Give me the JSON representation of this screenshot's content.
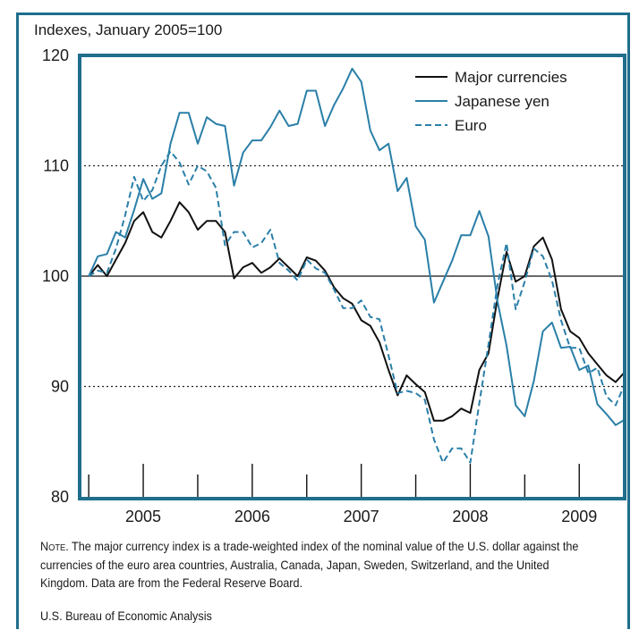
{
  "chart_data": {
    "type": "line",
    "subtitle": "Indexes, January 2005=100",
    "ylim": [
      80,
      120
    ],
    "yticks": [
      80,
      90,
      100,
      110,
      120
    ],
    "xlim": [
      "2004-12",
      "2009-12"
    ],
    "x_labels": [
      "2005",
      "2006",
      "2007",
      "2008",
      "2009"
    ],
    "gridlines": [
      90,
      110
    ],
    "reference_line": 100,
    "legend_position": "top-right",
    "series": [
      {
        "name": "Major currencies",
        "color": "#111111",
        "style": "solid",
        "x": [
          "2005-01",
          "2005-02",
          "2005-03",
          "2005-04",
          "2005-05",
          "2005-06",
          "2005-07",
          "2005-08",
          "2005-09",
          "2005-10",
          "2005-11",
          "2005-12",
          "2006-01",
          "2006-02",
          "2006-03",
          "2006-04",
          "2006-05",
          "2006-06",
          "2006-07",
          "2006-08",
          "2006-09",
          "2006-10",
          "2006-11",
          "2006-12",
          "2007-01",
          "2007-02",
          "2007-03",
          "2007-04",
          "2007-05",
          "2007-06",
          "2007-07",
          "2007-08",
          "2007-09",
          "2007-10",
          "2007-11",
          "2007-12",
          "2008-01",
          "2008-02",
          "2008-03",
          "2008-04",
          "2008-05",
          "2008-06",
          "2008-07",
          "2008-08",
          "2008-09",
          "2008-10",
          "2008-11",
          "2008-12",
          "2009-01",
          "2009-02",
          "2009-03",
          "2009-04",
          "2009-05",
          "2009-06",
          "2009-07",
          "2009-08",
          "2009-09",
          "2009-10",
          "2009-11",
          "2009-12"
        ],
        "values": [
          100,
          101,
          100,
          101.5,
          103,
          105,
          105.8,
          104,
          103.5,
          105,
          106.7,
          105.8,
          104.2,
          105,
          105,
          104,
          99.8,
          100.8,
          101.2,
          100.3,
          100.8,
          101.6,
          100.8,
          100,
          101.7,
          101.4,
          100.5,
          99,
          98,
          97.5,
          96,
          95.5,
          94,
          91.5,
          89.2,
          91,
          90.2,
          89.5,
          86.9,
          86.9,
          87.3,
          88,
          87.6,
          91.5,
          93,
          98,
          102.2,
          99.5,
          100,
          102.7,
          103.5,
          101.5,
          97,
          95,
          94.4,
          93,
          92,
          91,
          90.4,
          91.3
        ]
      },
      {
        "name": "Japanese yen",
        "color": "#2a7fa8",
        "style": "solid",
        "x": [
          "2005-01",
          "2005-02",
          "2005-03",
          "2005-04",
          "2005-05",
          "2005-06",
          "2005-07",
          "2005-08",
          "2005-09",
          "2005-10",
          "2005-11",
          "2005-12",
          "2006-01",
          "2006-02",
          "2006-03",
          "2006-04",
          "2006-05",
          "2006-06",
          "2006-07",
          "2006-08",
          "2006-09",
          "2006-10",
          "2006-11",
          "2006-12",
          "2007-01",
          "2007-02",
          "2007-03",
          "2007-04",
          "2007-05",
          "2007-06",
          "2007-07",
          "2007-08",
          "2007-09",
          "2007-10",
          "2007-11",
          "2007-12",
          "2008-01",
          "2008-02",
          "2008-03",
          "2008-04",
          "2008-05",
          "2008-06",
          "2008-07",
          "2008-08",
          "2008-09",
          "2008-10",
          "2008-11",
          "2008-12",
          "2009-01",
          "2009-02",
          "2009-03",
          "2009-04",
          "2009-05",
          "2009-06",
          "2009-07",
          "2009-08",
          "2009-09",
          "2009-10",
          "2009-11",
          "2009-12"
        ],
        "values": [
          100,
          101.8,
          102,
          104,
          103.5,
          106,
          108.8,
          107,
          107.5,
          112,
          114.8,
          114.8,
          112,
          114.4,
          113.8,
          113.6,
          108.2,
          111.2,
          112.3,
          112.3,
          113.5,
          115,
          113.6,
          113.8,
          116.8,
          116.8,
          113.6,
          115.5,
          117,
          118.8,
          117.6,
          113.2,
          111.4,
          112,
          107.7,
          108.9,
          104.5,
          103.3,
          97.6,
          99.5,
          101.4,
          103.7,
          103.7,
          105.9,
          103.6,
          97.7,
          93.7,
          88.3,
          87.3,
          90.5,
          95,
          95.8,
          93.5,
          93.6,
          91.5,
          91.9,
          88.4,
          87.5,
          86.5,
          87
        ]
      },
      {
        "name": "Euro",
        "color": "#2a7fa8",
        "style": "dashed",
        "x": [
          "2005-01",
          "2005-02",
          "2005-03",
          "2005-04",
          "2005-05",
          "2005-06",
          "2005-07",
          "2005-08",
          "2005-09",
          "2005-10",
          "2005-11",
          "2005-12",
          "2006-01",
          "2006-02",
          "2006-03",
          "2006-04",
          "2006-05",
          "2006-06",
          "2006-07",
          "2006-08",
          "2006-09",
          "2006-10",
          "2006-11",
          "2006-12",
          "2007-01",
          "2007-02",
          "2007-03",
          "2007-04",
          "2007-05",
          "2007-06",
          "2007-07",
          "2007-08",
          "2007-09",
          "2007-10",
          "2007-11",
          "2007-12",
          "2008-01",
          "2008-02",
          "2008-03",
          "2008-04",
          "2008-05",
          "2008-06",
          "2008-07",
          "2008-08",
          "2008-09",
          "2008-10",
          "2008-11",
          "2008-12",
          "2009-01",
          "2009-02",
          "2009-03",
          "2009-04",
          "2009-05",
          "2009-06",
          "2009-07",
          "2009-08",
          "2009-09",
          "2009-10",
          "2009-11",
          "2009-12"
        ],
        "values": [
          100,
          100.5,
          100.3,
          102.5,
          105.5,
          109,
          106.8,
          107.8,
          110,
          111.3,
          110.3,
          108.3,
          110,
          109.5,
          108,
          102.8,
          104,
          104,
          102.6,
          103,
          104.2,
          101.2,
          100.5,
          99.6,
          101.5,
          100.7,
          100.3,
          98.8,
          97.1,
          97.1,
          97.8,
          96.3,
          96.1,
          92.8,
          89.4,
          89.6,
          89.4,
          88.8,
          85.2,
          83.1,
          84.4,
          84.4,
          83.1,
          88.5,
          93.8,
          99.2,
          103,
          97,
          99.5,
          102.5,
          101.8,
          99.6,
          96,
          93.5,
          93.5,
          91.2,
          91.7,
          89.1,
          88.3,
          90.2
        ]
      }
    ]
  },
  "note": {
    "lead": "Note.",
    "text": " The major currency index is a trade-weighted index of the nominal value of the U.S. dollar against the currencies of the euro area countries, Australia, Canada, Japan, Sweden, Switzerland, and the United Kingdom. Data are from the Federal Reserve Board."
  },
  "source": "U.S. Bureau of Economic Analysis"
}
